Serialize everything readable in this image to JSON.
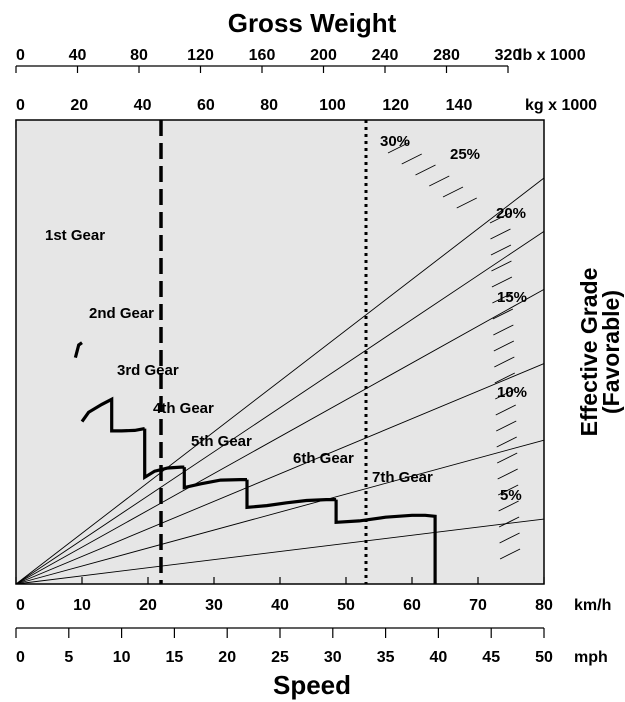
{
  "chart_data": {
    "type": "line",
    "title": "Gross Weight",
    "xlabel": "Speed",
    "ylabel": [
      "Effective Grade",
      "(Favorable)"
    ],
    "top_axes": [
      {
        "unit": "lb x 1000",
        "ticks": [
          "0",
          "40",
          "80",
          "120",
          "160",
          "200",
          "240",
          "280",
          "320"
        ]
      },
      {
        "unit": "kg x 1000",
        "ticks": [
          "0",
          "20",
          "40",
          "60",
          "80",
          "100",
          "120",
          "140"
        ]
      }
    ],
    "bottom_axes": [
      {
        "unit": "km/h",
        "ticks": [
          "0",
          "10",
          "20",
          "30",
          "40",
          "50",
          "60",
          "70",
          "80"
        ]
      },
      {
        "unit": "mph",
        "ticks": [
          "0",
          "5",
          "10",
          "15",
          "20",
          "25",
          "30",
          "35",
          "40",
          "45",
          "50"
        ]
      }
    ],
    "xlim_kmh": [
      0,
      80
    ],
    "weight_range_kg_x1000": [
      0,
      160
    ],
    "grade_lines": [
      {
        "label": "5%",
        "end": [
          80,
          14.0
        ]
      },
      {
        "label": "10%",
        "end": [
          80,
          31.0
        ]
      },
      {
        "label": "15%",
        "end": [
          80,
          47.5
        ]
      },
      {
        "label": "20%",
        "end": [
          80,
          63.5
        ]
      },
      {
        "label": "25%",
        "end": [
          80,
          76.0
        ]
      },
      {
        "label": "30%",
        "end": [
          80,
          87.5
        ]
      }
    ],
    "gears": [
      {
        "label": "1st Gear",
        "points": [
          [
            9.0,
            48.8
          ],
          [
            9.5,
            51.5
          ],
          [
            10.0,
            52.0
          ]
        ]
      },
      {
        "label": "2nd Gear",
        "points": [
          [
            10.0,
            35.0
          ],
          [
            11.0,
            37.0
          ],
          [
            13.0,
            38.7
          ],
          [
            14.5,
            39.8
          ],
          [
            14.5,
            33.0
          ],
          [
            16.0,
            33.0
          ],
          [
            18.0,
            33.1
          ],
          [
            19.5,
            33.5
          ]
        ]
      },
      {
        "label": "3rd Gear",
        "points": [
          [
            19.5,
            33.5
          ],
          [
            19.5,
            23.0
          ],
          [
            21.0,
            24.3
          ],
          [
            23.0,
            25.0
          ],
          [
            25.0,
            25.2
          ],
          [
            25.5,
            25.2
          ]
        ]
      },
      {
        "label": "4th Gear",
        "points": [
          [
            25.5,
            25.2
          ],
          [
            25.5,
            20.8
          ],
          [
            28.0,
            21.6
          ],
          [
            31.0,
            22.4
          ],
          [
            34.0,
            22.5
          ],
          [
            35.0,
            22.5
          ]
        ]
      },
      {
        "label": "5th Gear",
        "points": [
          [
            35.0,
            22.5
          ],
          [
            35.0,
            16.5
          ],
          [
            38.0,
            16.9
          ],
          [
            41.0,
            17.5
          ],
          [
            44.0,
            18.0
          ],
          [
            47.0,
            18.2
          ],
          [
            48.5,
            18.2
          ]
        ]
      },
      {
        "label": "6th Gear",
        "points": [
          [
            48.5,
            18.2
          ],
          [
            48.5,
            13.3
          ],
          [
            52.0,
            13.6
          ],
          [
            56.0,
            14.4
          ],
          [
            60.0,
            14.8
          ],
          [
            62.0,
            14.8
          ],
          [
            63.5,
            14.6
          ],
          [
            63.5,
            0
          ]
        ]
      },
      {
        "label": "7th Gear",
        "points": []
      }
    ],
    "reference_lines": [
      {
        "style": "dashed",
        "x_kmh": 22
      },
      {
        "style": "dotted",
        "x_kmh": 53
      }
    ],
    "grid": false
  }
}
